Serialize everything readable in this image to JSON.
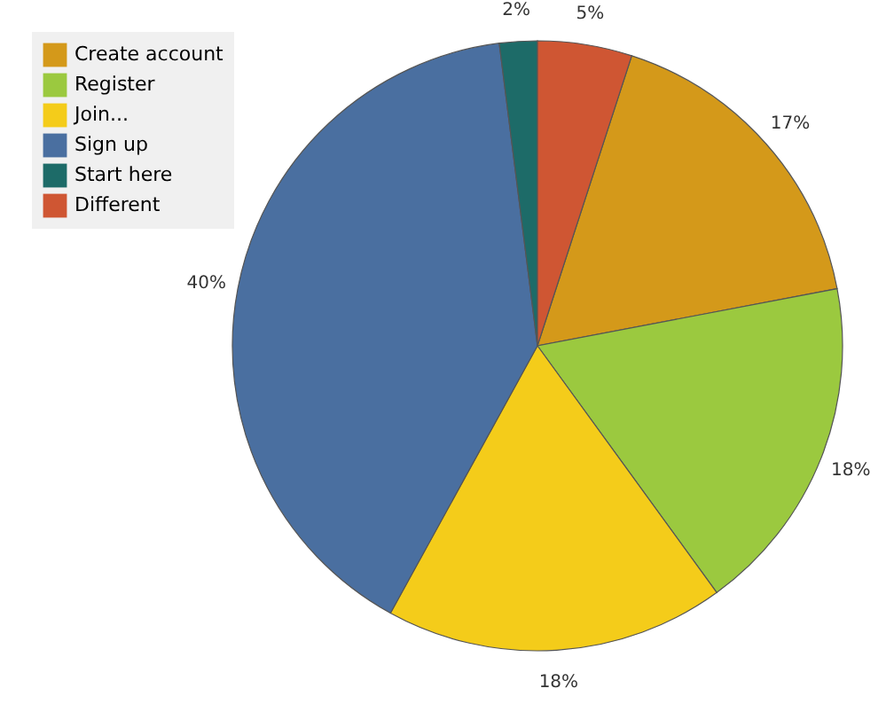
{
  "chart_data": {
    "type": "pie",
    "categories": [
      "Create account",
      "Register",
      "Join...",
      "Sign up",
      "Start here",
      "Different"
    ],
    "values": [
      17,
      18,
      18,
      40,
      2,
      5
    ],
    "colors": [
      "#d4991a",
      "#9bc93f",
      "#f4cc1a",
      "#4a6fa0",
      "#1d6b68",
      "#cf5633"
    ],
    "value_labels": [
      "17%",
      "18%",
      "18%",
      "40%",
      "2%",
      "5%"
    ],
    "legend": "top left"
  }
}
